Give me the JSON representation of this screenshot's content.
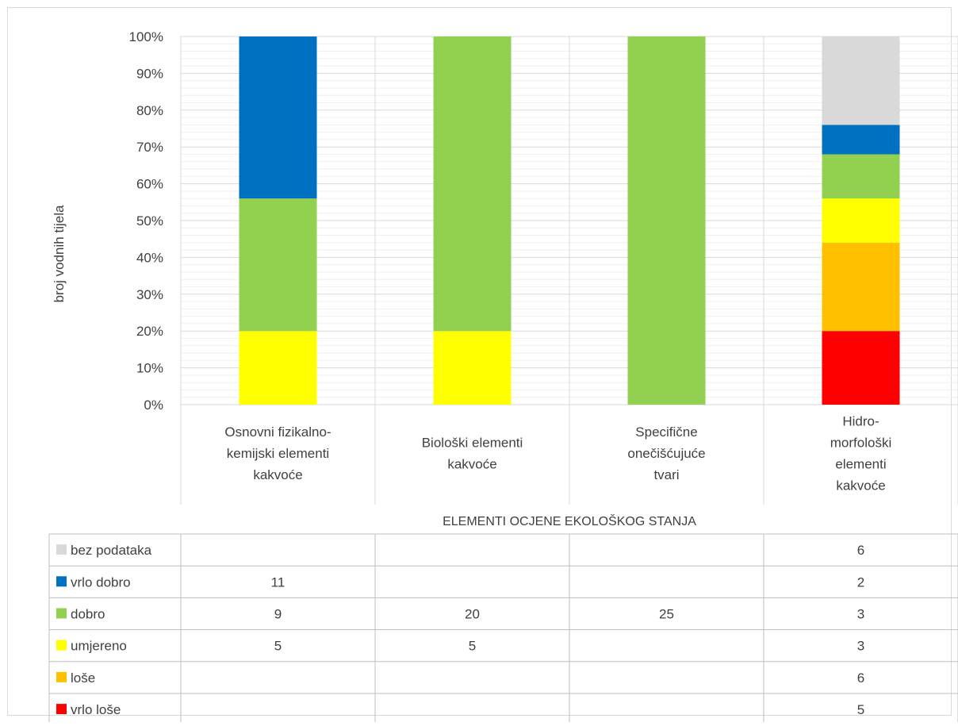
{
  "chart_data": {
    "type": "bar",
    "stacked": true,
    "percent": true,
    "ylabel": "broj vodnih tijela",
    "xlabel": "ELEMENTI OCJENE EKOLOŠKOG STANJA",
    "ylim": [
      0,
      100
    ],
    "yticks": [
      "0%",
      "10%",
      "20%",
      "30%",
      "40%",
      "50%",
      "60%",
      "70%",
      "80%",
      "90%",
      "100%"
    ],
    "categories": [
      [
        "Osnovni fizikalno-",
        "kemijski elementi",
        "kakvoće"
      ],
      [
        "Biološki elementi",
        "kakvoće"
      ],
      [
        "Specifične",
        "onečišćujuće",
        "tvari"
      ],
      [
        "Hidro-",
        "morfološki",
        "elementi",
        "kakvoće"
      ]
    ],
    "series": [
      {
        "name": "vrlo loše",
        "color": "#FF0000",
        "values": [
          null,
          null,
          null,
          5
        ]
      },
      {
        "name": "loše",
        "color": "#FFC000",
        "values": [
          null,
          null,
          null,
          6
        ]
      },
      {
        "name": "umjereno",
        "color": "#FFFF00",
        "values": [
          5,
          5,
          null,
          3
        ]
      },
      {
        "name": "dobro",
        "color": "#92D050",
        "values": [
          9,
          20,
          25,
          3
        ]
      },
      {
        "name": "vrlo dobro",
        "color": "#0070C0",
        "values": [
          11,
          null,
          null,
          2
        ]
      },
      {
        "name": "bez podataka",
        "color": "#D9D9D9",
        "values": [
          null,
          null,
          null,
          6
        ]
      }
    ],
    "grid": true,
    "legend": "data-table"
  }
}
